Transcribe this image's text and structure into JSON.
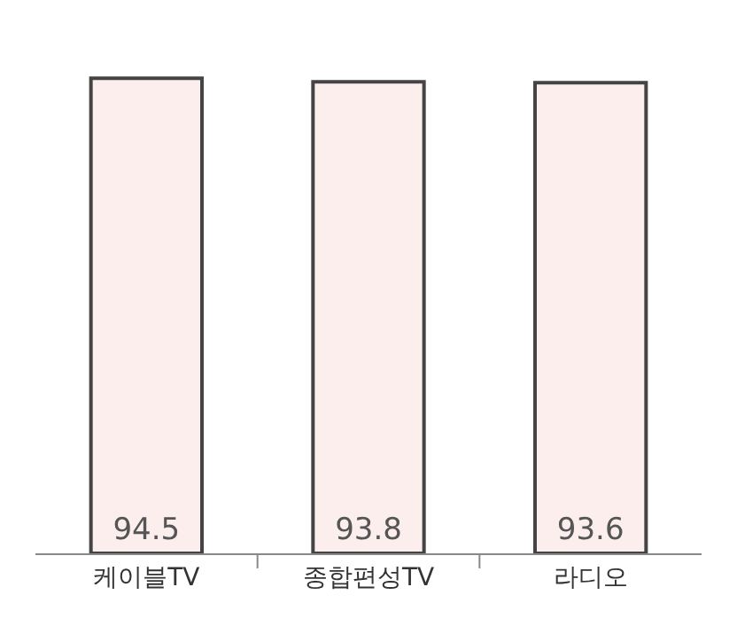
{
  "chart_data": {
    "type": "bar",
    "categories": [
      "케이블TV",
      "종합편성TV",
      "라디오"
    ],
    "values": [
      94.5,
      93.8,
      93.6
    ],
    "color": "#fdeeee",
    "data_labels": true,
    "tick_labels": "x"
  }
}
